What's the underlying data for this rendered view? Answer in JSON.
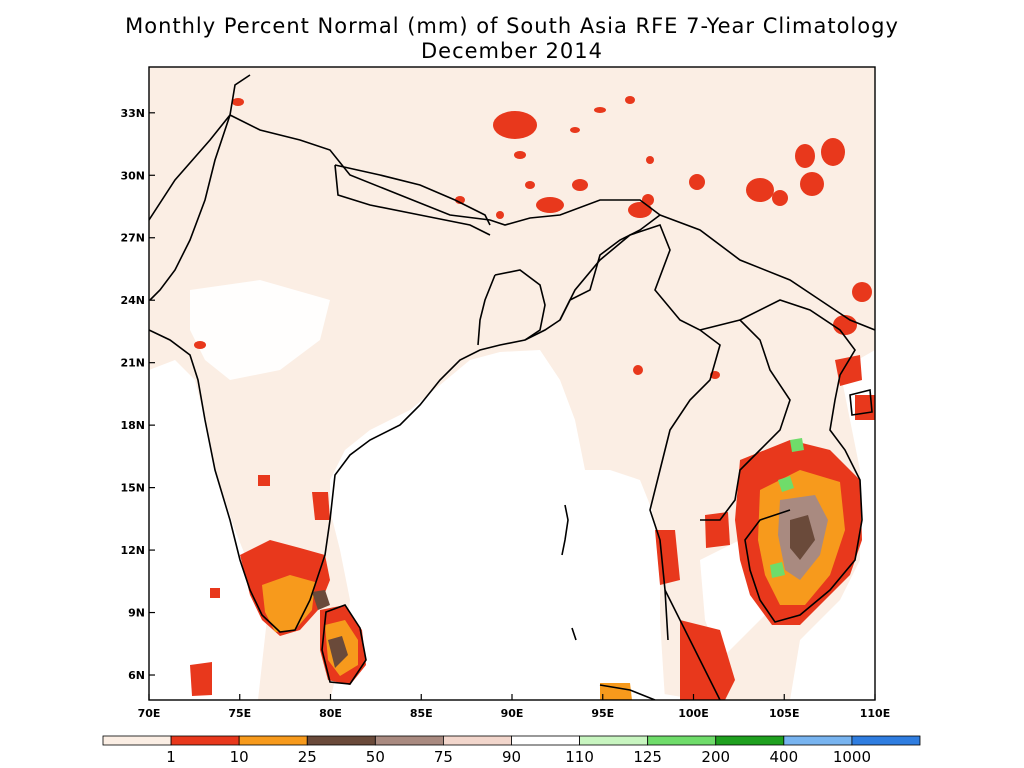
{
  "title": {
    "line1": "Monthly Percent Normal (mm) of South Asia RFE 7-Year Climatology",
    "line2": "December 2014"
  },
  "map": {
    "lon_range": [
      70,
      110
    ],
    "lat_range": [
      4.8,
      35.2
    ],
    "lon_ticks": [
      {
        "value": 70,
        "label": "70E"
      },
      {
        "value": 75,
        "label": "75E"
      },
      {
        "value": 80,
        "label": "80E"
      },
      {
        "value": 85,
        "label": "85E"
      },
      {
        "value": 90,
        "label": "90E"
      },
      {
        "value": 95,
        "label": "95E"
      },
      {
        "value": 100,
        "label": "100E"
      },
      {
        "value": 105,
        "label": "105E"
      },
      {
        "value": 110,
        "label": "110E"
      }
    ],
    "lat_ticks": [
      {
        "value": 6,
        "label": "6N"
      },
      {
        "value": 9,
        "label": "9N"
      },
      {
        "value": 12,
        "label": "12N"
      },
      {
        "value": 15,
        "label": "15N"
      },
      {
        "value": 18,
        "label": "18N"
      },
      {
        "value": 21,
        "label": "21N"
      },
      {
        "value": 24,
        "label": "24N"
      },
      {
        "value": 27,
        "label": "27N"
      },
      {
        "value": 30,
        "label": "30N"
      },
      {
        "value": 33,
        "label": "33N"
      }
    ]
  },
  "legend": {
    "bins": [
      {
        "color": "#fbeee4"
      },
      {
        "color": "#e8381c"
      },
      {
        "color": "#f79a1c"
      },
      {
        "color": "#6a4a3a"
      },
      {
        "color": "#a98a80"
      },
      {
        "color": "#f2d6cc"
      },
      {
        "color": "#ffffff"
      },
      {
        "color": "#c8f5c0"
      },
      {
        "color": "#6fdc6a"
      },
      {
        "color": "#1fa01f"
      },
      {
        "color": "#78b4f0"
      },
      {
        "color": "#2f7de0"
      }
    ],
    "labels": [
      "1",
      "10",
      "25",
      "50",
      "75",
      "90",
      "110",
      "125",
      "200",
      "400",
      "1000"
    ]
  },
  "regions": {
    "land_color": "#fbeee4",
    "dry_color": "#e8381c",
    "mid_color": "#f79a1c",
    "dark_color": "#6a4a3a",
    "wet_color": "#6fdc6a"
  }
}
